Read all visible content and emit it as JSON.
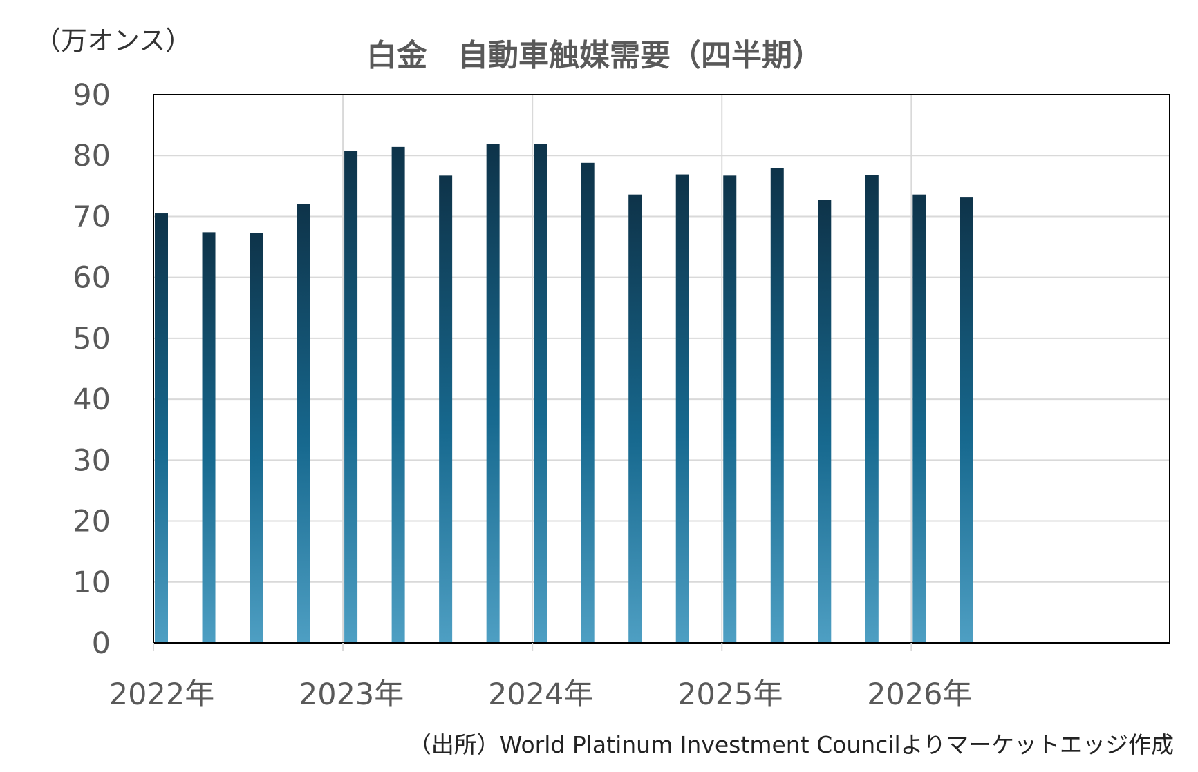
{
  "chart_data": {
    "type": "bar",
    "title": "白金　自動車触媒需要（四半期）",
    "unit_label": "（万オンス）",
    "source": "（出所）World Platinum Investment Councilよりマーケットエッジ作成",
    "ylim": [
      0,
      90
    ],
    "yticks": [
      "0",
      "10",
      "20",
      "30",
      "40",
      "50",
      "60",
      "70",
      "80",
      "90"
    ],
    "xlabels": [
      "2022年",
      "2023年",
      "2024年",
      "2025年",
      "2026年"
    ],
    "categories": [
      "2022Q1",
      "2022Q2",
      "2022Q3",
      "2022Q4",
      "2023Q1",
      "2023Q2",
      "2023Q3",
      "2023Q4",
      "2024Q1",
      "2024Q2",
      "2024Q3",
      "2024Q4",
      "2025Q1",
      "2025Q2",
      "2025Q3",
      "2025Q4",
      "2026Q1",
      "2026Q2"
    ],
    "values": [
      70.5,
      67.4,
      67.3,
      72.0,
      80.8,
      81.4,
      76.7,
      81.9,
      81.9,
      78.8,
      73.6,
      76.9,
      76.7,
      77.9,
      72.7,
      76.8,
      73.6,
      73.1
    ],
    "grid": true,
    "colors": {
      "bar_top": "#0e3349",
      "bar_mid": "#17698f",
      "bar_bottom": "#4e9fc3",
      "grid": "#d9d9d9",
      "axis": "#000000"
    }
  }
}
